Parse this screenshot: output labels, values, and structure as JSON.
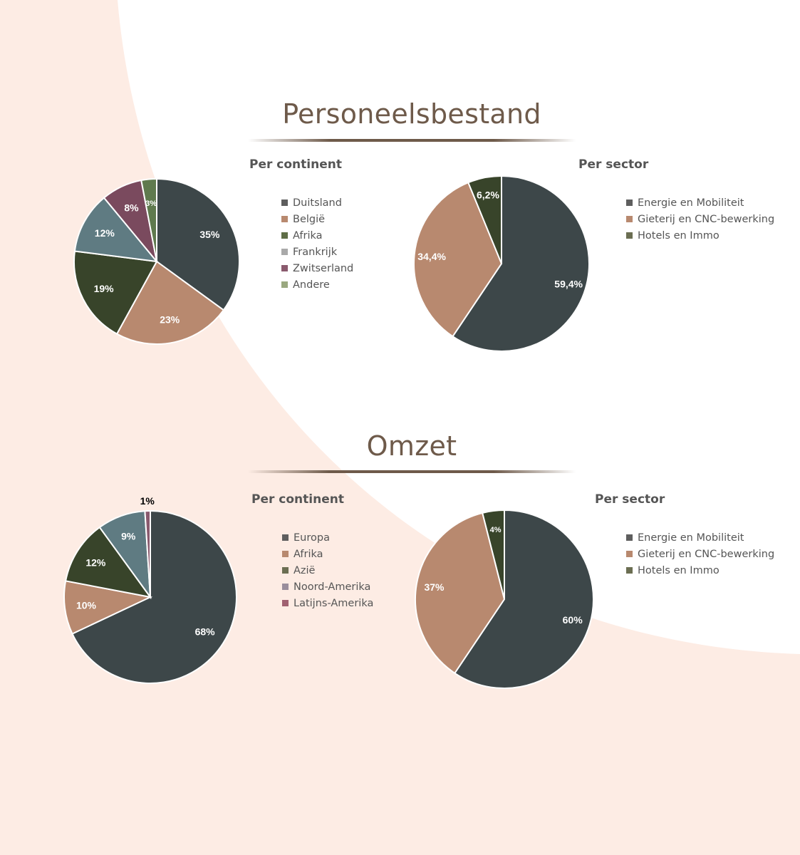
{
  "colors": {
    "background": "#fdece4",
    "panel": "#ffffff",
    "accent": "#6e5a4a"
  },
  "sections": [
    {
      "title": "Personeelsbestand",
      "charts": [
        {
          "subtitle": "Per continent",
          "chart_data": {
            "type": "pie",
            "slices": [
              {
                "label": "Duitsland",
                "value": 35,
                "display": "35%",
                "color": "#3d4749",
                "legend_color": "#5e5e5e"
              },
              {
                "label": "België",
                "value": 23,
                "display": "23%",
                "color": "#b8896f",
                "legend_color": "#b8896f"
              },
              {
                "label": "Afrika",
                "value": 19,
                "display": "19%",
                "color": "#38442a",
                "legend_color": "#5f6e47"
              },
              {
                "label": "Frankrijk",
                "value": 12,
                "display": "12%",
                "color": "#5f7b82",
                "legend_color": "#a9a9a9"
              },
              {
                "label": "Zwitserland",
                "value": 8,
                "display": "8%",
                "color": "#7a4a5e",
                "legend_color": "#8a5a6e"
              },
              {
                "label": "Andere",
                "value": 3,
                "display": "3%",
                "color": "#5f7a4e",
                "legend_color": "#9aa880"
              }
            ]
          }
        },
        {
          "subtitle": "Per sector",
          "chart_data": {
            "type": "pie",
            "slices": [
              {
                "label": "Energie en Mobiliteit",
                "value": 59.4,
                "display": "59,4%",
                "color": "#3d4749",
                "legend_color": "#5e5e5e"
              },
              {
                "label": "Gieterij en CNC-bewerking",
                "value": 34.4,
                "display": "34,4%",
                "color": "#b8896f",
                "legend_color": "#b8896f"
              },
              {
                "label": "Hotels en Immo",
                "value": 6.2,
                "display": "6,2%",
                "color": "#38442a",
                "legend_color": "#6b6e52"
              }
            ]
          }
        }
      ]
    },
    {
      "title": "Omzet",
      "charts": [
        {
          "subtitle": "Per continent",
          "chart_data": {
            "type": "pie",
            "slices": [
              {
                "label": "Europa",
                "value": 68,
                "display": "68%",
                "color": "#3d4749",
                "legend_color": "#5e5e5e"
              },
              {
                "label": "Afrika",
                "value": 10,
                "display": "10%",
                "color": "#b8896f",
                "legend_color": "#b8896f"
              },
              {
                "label": "Azië",
                "value": 12,
                "display": "12%",
                "color": "#38442a",
                "legend_color": "#6b6e52"
              },
              {
                "label": "Noord-Amerika",
                "value": 9,
                "display": "9%",
                "color": "#5f7b82",
                "legend_color": "#9a8e9c"
              },
              {
                "label": "Latijns-Amerika",
                "value": 1,
                "display": "1%",
                "color": "#8a5a6e",
                "legend_color": "#a06070"
              }
            ]
          }
        },
        {
          "subtitle": "Per sector",
          "chart_data": {
            "type": "pie",
            "slices": [
              {
                "label": "Energie en Mobiliteit",
                "value": 60,
                "display": "60%",
                "color": "#3d4749",
                "legend_color": "#5e5e5e"
              },
              {
                "label": "Gieterij en CNC-bewerking",
                "value": 37,
                "display": "37%",
                "color": "#b8896f",
                "legend_color": "#b8896f"
              },
              {
                "label": "Hotels en Immo",
                "value": 4,
                "display": "4%",
                "color": "#38442a",
                "legend_color": "#6b6e52"
              }
            ]
          }
        }
      ]
    }
  ]
}
